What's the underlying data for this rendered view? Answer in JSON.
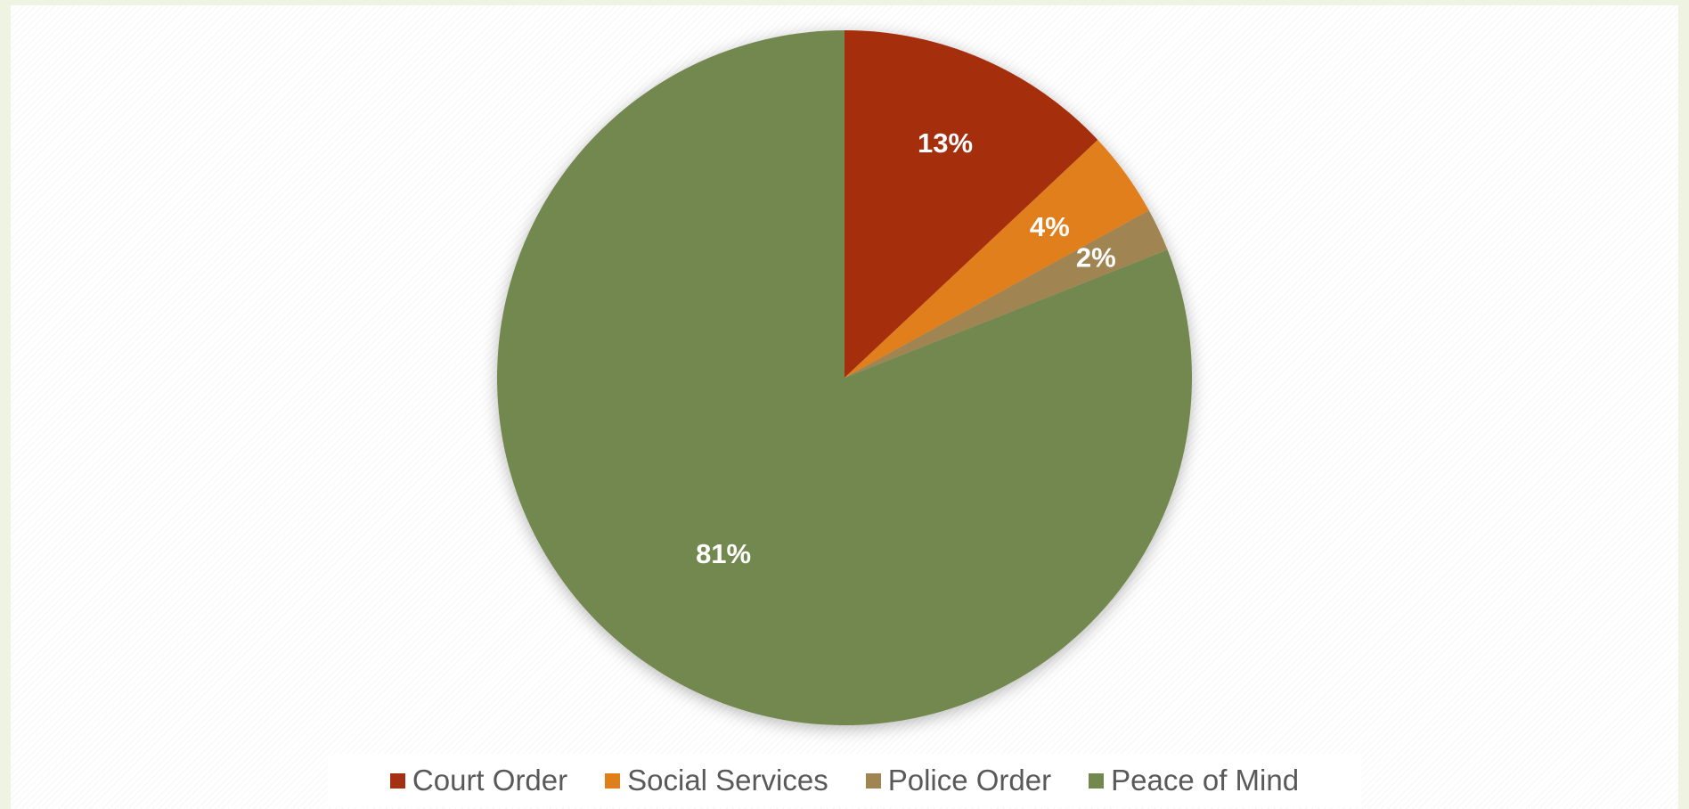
{
  "chart_data": {
    "type": "pie",
    "title": "",
    "categories": [
      "Court Order",
      "Social Services",
      "Police Order",
      "Peace of Mind"
    ],
    "values": [
      13,
      4,
      2,
      81
    ],
    "labels": [
      "13%",
      "4%",
      "2%",
      "81%"
    ],
    "colors": [
      "#a52f11",
      "#e07f1a",
      "#a08552",
      "#72884f"
    ],
    "start_angle": "12 o'clock",
    "direction": "clockwise",
    "legend": "bottom"
  }
}
